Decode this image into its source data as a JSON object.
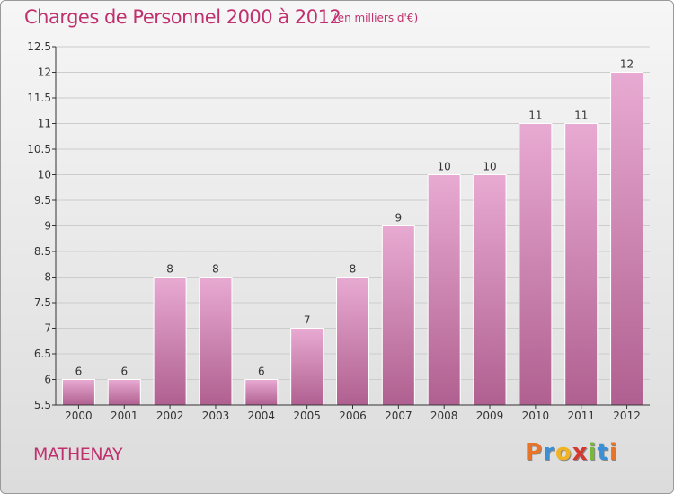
{
  "header": {
    "title": "Charges de Personnel 2000 à 2012",
    "subtitle": "(en milliers d'€)"
  },
  "footer": {
    "place": "MATHENAY",
    "logo": [
      "P",
      "r",
      "o",
      "x",
      "i",
      "t",
      "i"
    ],
    "logo_colors": [
      "#e8742a",
      "#3a8fd6",
      "#f2b322",
      "#d6382f",
      "#7ab83a",
      "#3a8fd6",
      "#e8742a"
    ]
  },
  "colors": {
    "bar_top": "#e8aad2",
    "bar_bottom": "#b06090",
    "bar_stroke": "#ffffff",
    "grid": "#cccccc",
    "axis": "#333333",
    "accent": "#c0306e"
  },
  "chart_data": {
    "type": "bar",
    "categories": [
      "2000",
      "2001",
      "2002",
      "2003",
      "2004",
      "2005",
      "2006",
      "2007",
      "2008",
      "2009",
      "2010",
      "2011",
      "2012"
    ],
    "values": [
      6,
      6,
      8,
      8,
      6,
      7,
      8,
      9,
      10,
      10,
      11,
      11,
      12
    ],
    "data_labels": [
      "6",
      "6",
      "8",
      "8",
      "6",
      "7",
      "8",
      "9",
      "10",
      "10",
      "11",
      "11",
      "12"
    ],
    "ylim": [
      5.5,
      12.5
    ],
    "yticks": [
      5.5,
      6,
      6.5,
      7,
      7.5,
      8,
      8.5,
      9,
      9.5,
      10,
      10.5,
      11,
      11.5,
      12,
      12.5
    ],
    "ytick_labels": [
      "5.5",
      "6",
      "6.5",
      "7",
      "7.5",
      "8",
      "8.5",
      "9",
      "9.5",
      "10",
      "10.5",
      "11",
      "11.5",
      "12",
      "12.5"
    ],
    "grid": true,
    "title": "Charges de Personnel 2000 à 2012",
    "xlabel": "",
    "ylabel": ""
  }
}
